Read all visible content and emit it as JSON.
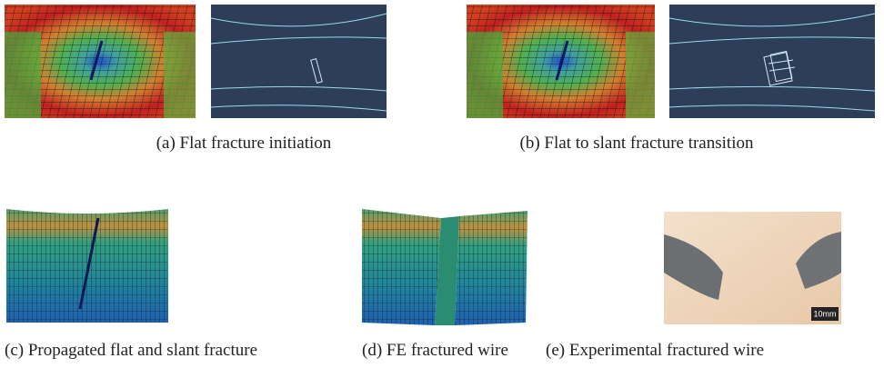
{
  "figure": {
    "captions": [
      "(a) Flat fracture initiation",
      "(b) Flat to slant fracture transition",
      "(c) Propagated flat and slant fracture",
      "(d) FE fractured wire",
      "(e) Experimental fractured wire"
    ],
    "scale_bar": "10mm"
  }
}
